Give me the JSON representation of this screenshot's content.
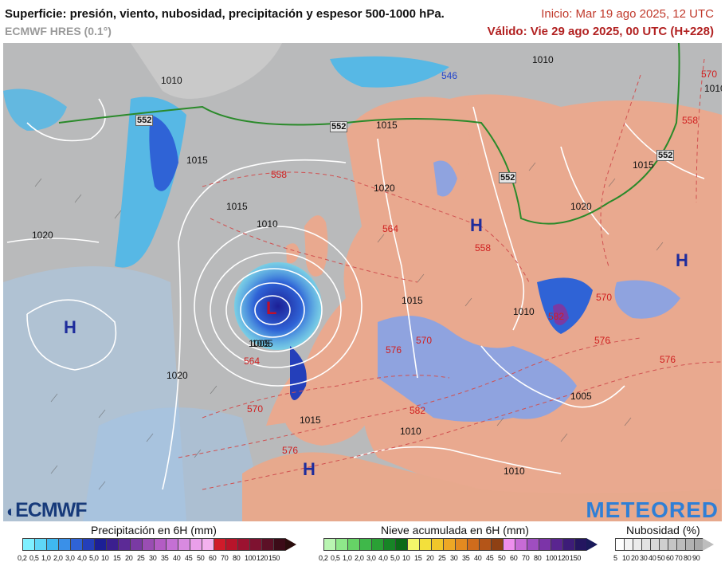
{
  "header": {
    "title": "Superficie: presión, viento, nubosidad, precipitación y espesor 500-1000 hPa.",
    "model": "ECMWF HRES (0.1°)",
    "init": "Inicio: Mar 19 ago 2025, 12 UTC",
    "valid": "Válido: Vie 29 ago 2025, 00 UTC (H+228)"
  },
  "map": {
    "pressure_labels": [
      "1020",
      "1015",
      "1010",
      "1005",
      "1020",
      "1015",
      "1010",
      "1005",
      "1015",
      "1010",
      "1010",
      "1020",
      "1015",
      "1010",
      "1010",
      "1020",
      "1015",
      "1005",
      "1010",
      "1015"
    ],
    "thickness_labels": [
      "558",
      "564",
      "558",
      "570",
      "576",
      "564",
      "570",
      "576",
      "582",
      "576",
      "570",
      "576",
      "582",
      "546",
      "558",
      "570"
    ],
    "boxed_labels": [
      "552",
      "552",
      "552",
      "552"
    ],
    "high_symbols": [
      "H",
      "H",
      "H",
      "H"
    ],
    "low_symbol": "L"
  },
  "logos": {
    "left": "ECMWF",
    "right": "METEORED"
  },
  "legends": {
    "precip": {
      "title": "Precipitación en 6H (mm)",
      "ticks": [
        "0,2",
        "0,5",
        "1,0",
        "2,0",
        "3,0",
        "4,0",
        "5,0",
        "10",
        "15",
        "20",
        "25",
        "30",
        "35",
        "40",
        "45",
        "50",
        "60",
        "70",
        "80",
        "100",
        "120",
        "150"
      ],
      "colors": [
        "#7ff0ff",
        "#5fd7f7",
        "#3fb8f0",
        "#3a90e8",
        "#2f63d6",
        "#243fba",
        "#1c1f96",
        "#3b1f8f",
        "#5c2a96",
        "#7a3aa3",
        "#9a4db3",
        "#b35cc4",
        "#c470d4",
        "#d88ae0",
        "#ea9fea",
        "#f3b1ee",
        "#d01b2a",
        "#b8142a",
        "#9c1230",
        "#7e1230",
        "#5c1026",
        "#3c0c18"
      ]
    },
    "snow": {
      "title": "Nieve acumulada en 6H (mm)",
      "ticks": [
        "0,2",
        "0,5",
        "1,0",
        "2,0",
        "3,0",
        "4,0",
        "5,0",
        "10",
        "15",
        "20",
        "25",
        "30",
        "35",
        "40",
        "45",
        "50",
        "60",
        "70",
        "80",
        "100",
        "120",
        "150"
      ],
      "colors": [
        "#b9f5b2",
        "#8ee88a",
        "#66d366",
        "#3fb84a",
        "#2aa035",
        "#178526",
        "#0b6a17",
        "#f4f66a",
        "#f3e03b",
        "#f0c72a",
        "#eda825",
        "#e38a20",
        "#d06c1c",
        "#b45518",
        "#8e4014",
        "#ee8fee",
        "#c76bd6",
        "#9f4ec0",
        "#7c34a8",
        "#5a2590",
        "#3d1c78",
        "#241660"
      ]
    },
    "cloud": {
      "title": "Nubosidad (%)",
      "ticks": [
        "5",
        "10",
        "20",
        "30",
        "40",
        "50",
        "60",
        "70",
        "80",
        "90"
      ],
      "colors": [
        "#ffffff",
        "#f4f4f4",
        "#ebebeb",
        "#e2e2e2",
        "#d8d8d8",
        "#cfcfcf",
        "#c5c5c5",
        "#bcbcbc",
        "#b2b2b2",
        "#a9a9a9"
      ]
    }
  },
  "colors": {
    "land": "#e9a98f",
    "sea_rain": "#8fa3df",
    "cloud": "#b9babb",
    "high": "#1e2c9c",
    "low": "#c0102a",
    "thickness": "#d02020"
  }
}
